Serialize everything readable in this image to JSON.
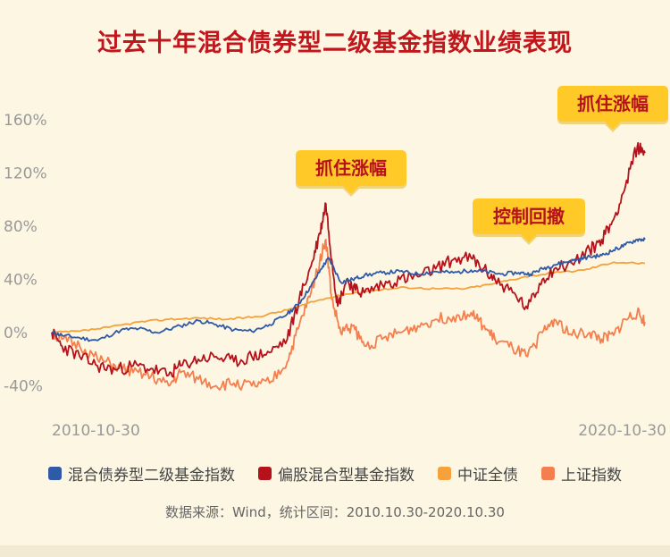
{
  "title": "过去十年混合债券型二级基金指数业绩表现",
  "source": "数据来源：Wind，统计区间：2010.10.30-2020.10.30",
  "chart_data": {
    "type": "line",
    "title": "过去十年混合债券型二级基金指数业绩表现",
    "xlabel": "",
    "ylabel": "",
    "x_ticks": [
      "2010-10-30",
      "2020-10-30"
    ],
    "x_range": [
      "2010-10-30",
      "2020-10-30"
    ],
    "y_ticks": [
      "160%",
      "120%",
      "80%",
      "40%",
      "0%",
      "-40%"
    ],
    "ylim": [
      -60,
      170
    ],
    "grid": false,
    "legend_position": "bottom",
    "callouts": [
      {
        "text": "抓住涨幅",
        "x": "2015-06",
        "y": 97
      },
      {
        "text": "控制回撤",
        "x": "2018-02",
        "y": 50
      },
      {
        "text": "抓住涨幅",
        "x": "2020-07",
        "y": 140
      }
    ],
    "series": [
      {
        "name": "混合债券型二级基金指数",
        "color": "#2f5aa8",
        "x": [
          2010.83,
          2011.0,
          2011.3,
          2011.6,
          2012.0,
          2012.3,
          2012.6,
          2013.0,
          2013.3,
          2013.6,
          2013.9,
          2014.2,
          2014.5,
          2014.8,
          2015.0,
          2015.2,
          2015.4,
          2015.5,
          2015.7,
          2015.9,
          2016.1,
          2016.4,
          2016.7,
          2017.0,
          2017.3,
          2017.6,
          2017.9,
          2018.1,
          2018.4,
          2018.7,
          2018.9,
          2019.1,
          2019.3,
          2019.5,
          2019.7,
          2019.9,
          2020.1,
          2020.3,
          2020.5,
          2020.7,
          2020.83
        ],
        "y": [
          0,
          -2,
          -4,
          -6,
          2,
          3,
          0,
          5,
          9,
          6,
          2,
          1,
          6,
          14,
          22,
          35,
          50,
          56,
          38,
          40,
          43,
          45,
          46,
          44,
          46,
          45,
          47,
          46,
          44,
          45,
          44,
          48,
          51,
          53,
          55,
          57,
          58,
          62,
          66,
          70,
          70
        ]
      },
      {
        "name": "偏股混合型基金指数",
        "color": "#b5121b",
        "x": [
          2010.83,
          2011.0,
          2011.3,
          2011.6,
          2011.9,
          2012.2,
          2012.5,
          2012.8,
          2013.0,
          2013.3,
          2013.6,
          2013.9,
          2014.2,
          2014.5,
          2014.8,
          2015.0,
          2015.2,
          2015.35,
          2015.45,
          2015.55,
          2015.65,
          2015.8,
          2015.95,
          2016.1,
          2016.4,
          2016.7,
          2017.0,
          2017.3,
          2017.6,
          2017.9,
          2018.1,
          2018.3,
          2018.6,
          2018.85,
          2019.1,
          2019.3,
          2019.6,
          2019.9,
          2020.1,
          2020.3,
          2020.5,
          2020.7,
          2020.83
        ],
        "y": [
          0,
          -10,
          -18,
          -25,
          -28,
          -25,
          -27,
          -32,
          -25,
          -20,
          -18,
          -22,
          -18,
          -15,
          -5,
          25,
          50,
          75,
          97,
          55,
          20,
          40,
          32,
          30,
          36,
          40,
          42,
          48,
          55,
          56,
          48,
          40,
          30,
          18,
          40,
          48,
          52,
          62,
          70,
          85,
          110,
          140,
          135
        ]
      },
      {
        "name": "中证全债",
        "color": "#f5a13c",
        "x": [
          2010.83,
          2011.3,
          2011.8,
          2012.3,
          2012.8,
          2013.3,
          2013.8,
          2014.3,
          2014.8,
          2015.3,
          2015.8,
          2016.3,
          2016.8,
          2017.3,
          2017.8,
          2018.3,
          2018.8,
          2019.3,
          2019.8,
          2020.3,
          2020.83
        ],
        "y": [
          0,
          1,
          4,
          8,
          10,
          11,
          10,
          12,
          17,
          24,
          29,
          32,
          34,
          33,
          33,
          37,
          42,
          45,
          47,
          53,
          52
        ]
      },
      {
        "name": "上证指数",
        "color": "#f47f4e",
        "x": [
          2010.83,
          2011.0,
          2011.3,
          2011.6,
          2011.9,
          2012.2,
          2012.5,
          2012.8,
          2013.0,
          2013.3,
          2013.6,
          2013.9,
          2014.2,
          2014.5,
          2014.8,
          2015.0,
          2015.2,
          2015.35,
          2015.45,
          2015.55,
          2015.7,
          2015.9,
          2016.1,
          2016.4,
          2016.7,
          2017.0,
          2017.3,
          2017.6,
          2017.9,
          2018.1,
          2018.3,
          2018.6,
          2018.85,
          2019.1,
          2019.3,
          2019.6,
          2019.9,
          2020.1,
          2020.3,
          2020.5,
          2020.7,
          2020.83
        ],
        "y": [
          0,
          -5,
          -10,
          -20,
          -25,
          -30,
          -33,
          -40,
          -30,
          -35,
          -40,
          -38,
          -40,
          -38,
          -22,
          5,
          30,
          55,
          70,
          25,
          0,
          5,
          -10,
          -5,
          0,
          5,
          10,
          12,
          15,
          5,
          -5,
          -12,
          -18,
          0,
          10,
          -2,
          0,
          -5,
          -2,
          10,
          15,
          8
        ]
      }
    ]
  }
}
